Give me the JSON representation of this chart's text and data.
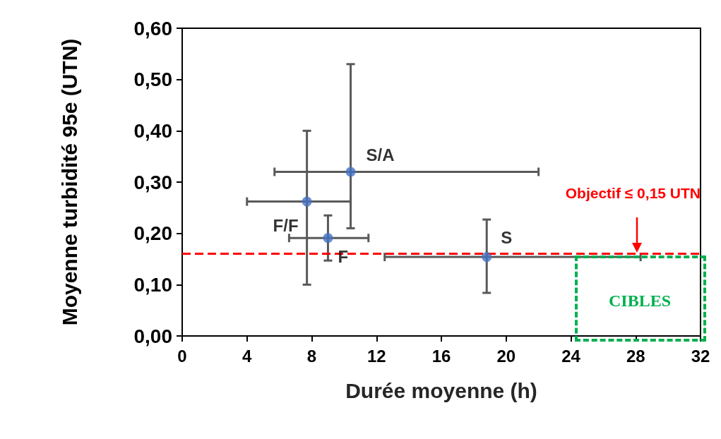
{
  "chart_data": {
    "type": "scatter",
    "xlabel": "Durée moyenne (h)",
    "ylabel": "Moyenne turbidité 95e (UTN)",
    "series": [
      {
        "name": "S/A",
        "color": "#4472c4",
        "x": [
          10.4
        ],
        "values": [
          0.32
        ],
        "errors": [
          [
            0.21,
            0.53
          ]
        ],
        "xerrors": [
          [
            5.7,
            22.0
          ]
        ]
      },
      {
        "name": "F/F",
        "color": "#4472c4",
        "x": [
          7.7
        ],
        "values": [
          0.262
        ],
        "errors": [
          [
            0.1,
            0.4
          ]
        ],
        "xerrors": [
          [
            4.0,
            10.4
          ]
        ]
      },
      {
        "name": "F",
        "color": "#4472c4",
        "x": [
          9.0
        ],
        "values": [
          0.191
        ],
        "errors": [
          [
            0.147,
            0.235
          ]
        ],
        "xerrors": [
          [
            6.6,
            11.5
          ]
        ]
      },
      {
        "name": "S",
        "color": "#4472c4",
        "x": [
          18.8
        ],
        "values": [
          0.154
        ],
        "errors": [
          [
            0.084,
            0.227
          ]
        ],
        "xerrors": [
          [
            12.5,
            28.3
          ]
        ]
      }
    ],
    "xlim": [
      0,
      32
    ],
    "xticks": [
      0,
      4,
      8,
      12,
      16,
      20,
      24,
      28,
      32
    ],
    "ylim": [
      0,
      0.6
    ],
    "yticks": [
      {
        "value": 0,
        "label": "0,00"
      },
      {
        "value": 0.1,
        "label": "0,10"
      },
      {
        "value": 0.2,
        "label": "0,20"
      },
      {
        "value": 0.3,
        "label": "0,30"
      },
      {
        "value": 0.4,
        "label": "0,40"
      },
      {
        "value": 0.5,
        "label": "0,50"
      },
      {
        "value": 0.6,
        "label": "0,60"
      }
    ],
    "ref_lines": [
      {
        "axis": "y",
        "value": 0.162,
        "label": "Objectif ≤ 0,15 UTN",
        "color": "#ff0000",
        "line_style": "dashed"
      }
    ],
    "annotations": [
      "CIBLES"
    ],
    "grid": false,
    "legend": false,
    "marker": "circle"
  }
}
